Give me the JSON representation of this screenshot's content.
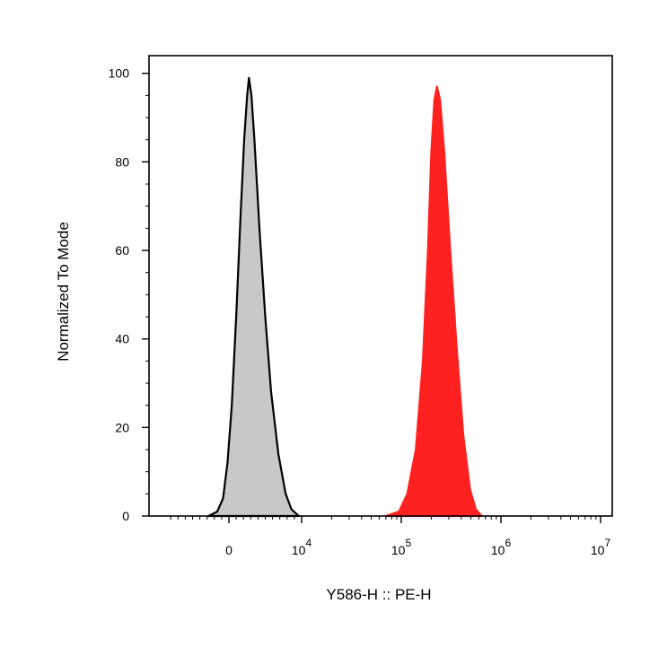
{
  "chart_data": {
    "type": "area",
    "title": "",
    "xlabel": "Y586-H :: PE-H",
    "ylabel": "Normalized To Mode",
    "x_scale": "biexponential",
    "xlim": [
      -8000,
      10000000
    ],
    "ylim": [
      0,
      104
    ],
    "y_ticks": [
      0,
      20,
      40,
      60,
      80,
      100
    ],
    "x_ticks": [
      {
        "value": 0,
        "base": "0",
        "exp": ""
      },
      {
        "value": 10000,
        "base": "10",
        "exp": "4"
      },
      {
        "value": 100000,
        "base": "10",
        "exp": "5"
      },
      {
        "value": 1000000,
        "base": "10",
        "exp": "6"
      },
      {
        "value": 10000000,
        "base": "10",
        "exp": "7"
      }
    ],
    "grid": false,
    "legend": "none",
    "series": [
      {
        "color": "#c8c8c8",
        "outline": "#000000",
        "points": [
          [
            -2800,
            0
          ],
          [
            -1600,
            1
          ],
          [
            -800,
            4
          ],
          [
            -200,
            12
          ],
          [
            400,
            25
          ],
          [
            1000,
            45
          ],
          [
            1600,
            68
          ],
          [
            2100,
            85
          ],
          [
            2500,
            95
          ],
          [
            2750,
            99
          ],
          [
            3100,
            95
          ],
          [
            3500,
            85
          ],
          [
            4200,
            65
          ],
          [
            5000,
            45
          ],
          [
            5800,
            28
          ],
          [
            6800,
            14
          ],
          [
            7800,
            5
          ],
          [
            8600,
            1.5
          ],
          [
            9600,
            0
          ]
        ]
      },
      {
        "color": "#ff2020",
        "outline": "#ff2020",
        "points": [
          [
            70000,
            0
          ],
          [
            95000,
            1
          ],
          [
            115000,
            5
          ],
          [
            140000,
            15
          ],
          [
            165000,
            35
          ],
          [
            185000,
            60
          ],
          [
            200000,
            82
          ],
          [
            215000,
            94
          ],
          [
            228000,
            97
          ],
          [
            245000,
            94
          ],
          [
            270000,
            82
          ],
          [
            310000,
            60
          ],
          [
            360000,
            38
          ],
          [
            420000,
            18
          ],
          [
            490000,
            6
          ],
          [
            560000,
            1.5
          ],
          [
            640000,
            0
          ]
        ]
      }
    ]
  }
}
